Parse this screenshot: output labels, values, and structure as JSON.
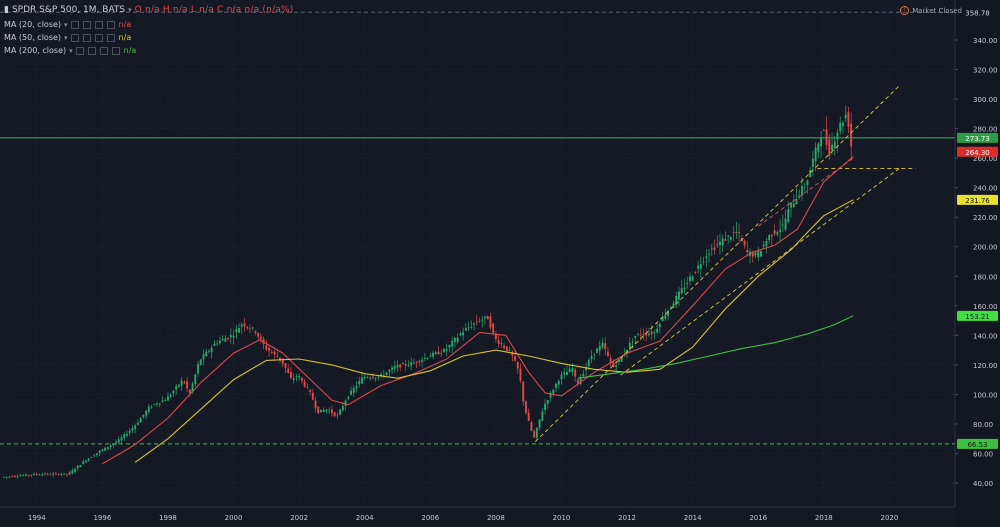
{
  "header": {
    "symbol_icon": "candles-icon",
    "title": "SPDR S&P 500, 1M, BATS",
    "ohlc": "O n/a  H n/a  L n/a  C n/a  n/a (n/a%)",
    "market_status": "Market Closed"
  },
  "indicators": [
    {
      "label": "MA (20, close)",
      "value": "n/a",
      "color": "#d84a4a"
    },
    {
      "label": "MA (50, close)",
      "value": "n/a",
      "color": "#d6c32b"
    },
    {
      "label": "MA (200, close)",
      "value": "n/a",
      "color": "#3fc03f"
    }
  ],
  "chart_data": {
    "type": "candlestick",
    "interval": "1M",
    "xlim": [
      1993.0,
      2022.0
    ],
    "ylim": [
      30,
      360
    ],
    "y_ticks": [
      40,
      60,
      80,
      100,
      120,
      140,
      160,
      180,
      200,
      220,
      240,
      260,
      280,
      300,
      320,
      340
    ],
    "y_tick_labels": [
      "40.00",
      "60.00",
      "80.00",
      "100.00",
      "120.00",
      "140.00",
      "160.00",
      "180.00",
      "200.00",
      "220.00",
      "240.00",
      "260.00",
      "280.00",
      "300.00",
      "320.00",
      "340.00"
    ],
    "x_ticks": [
      1994,
      1996,
      1998,
      2000,
      2002,
      2004,
      2006,
      2008,
      2010,
      2012,
      2014,
      2016,
      2018,
      2020
    ],
    "x_tick_labels": [
      "1994",
      "1996",
      "1998",
      "2000",
      "2002",
      "2004",
      "2006",
      "2008",
      "2010",
      "2012",
      "2014",
      "2016",
      "2018",
      "2020"
    ],
    "grid": true,
    "price_path": [
      [
        1993.0,
        44
      ],
      [
        1994.0,
        46
      ],
      [
        1995.0,
        46
      ],
      [
        1995.5,
        55
      ],
      [
        1996.0,
        62
      ],
      [
        1996.5,
        68
      ],
      [
        1997.0,
        78
      ],
      [
        1997.5,
        92
      ],
      [
        1998.0,
        97
      ],
      [
        1998.5,
        110
      ],
      [
        1998.7,
        100
      ],
      [
        1999.0,
        123
      ],
      [
        1999.5,
        135
      ],
      [
        2000.0,
        140
      ],
      [
        2000.3,
        148
      ],
      [
        2000.7,
        143
      ],
      [
        2001.0,
        132
      ],
      [
        2001.5,
        123
      ],
      [
        2001.8,
        110
      ],
      [
        2002.0,
        113
      ],
      [
        2002.4,
        100
      ],
      [
        2002.6,
        88
      ],
      [
        2002.9,
        90
      ],
      [
        2003.2,
        85
      ],
      [
        2003.5,
        98
      ],
      [
        2004.0,
        112
      ],
      [
        2004.5,
        112
      ],
      [
        2005.0,
        119
      ],
      [
        2005.5,
        121
      ],
      [
        2006.0,
        126
      ],
      [
        2006.5,
        130
      ],
      [
        2007.0,
        142
      ],
      [
        2007.5,
        150
      ],
      [
        2007.8,
        152
      ],
      [
        2008.0,
        138
      ],
      [
        2008.5,
        128
      ],
      [
        2008.75,
        115
      ],
      [
        2008.9,
        92
      ],
      [
        2009.1,
        77
      ],
      [
        2009.2,
        70
      ],
      [
        2009.5,
        92
      ],
      [
        2010.0,
        112
      ],
      [
        2010.4,
        118
      ],
      [
        2010.5,
        106
      ],
      [
        2011.0,
        128
      ],
      [
        2011.3,
        134
      ],
      [
        2011.6,
        118
      ],
      [
        2011.9,
        126
      ],
      [
        2012.3,
        140
      ],
      [
        2012.9,
        142
      ],
      [
        2013.0,
        148
      ],
      [
        2013.5,
        164
      ],
      [
        2014.0,
        180
      ],
      [
        2014.5,
        196
      ],
      [
        2015.0,
        205
      ],
      [
        2015.4,
        210
      ],
      [
        2015.7,
        196
      ],
      [
        2016.0,
        194
      ],
      [
        2016.4,
        208
      ],
      [
        2016.8,
        214
      ],
      [
        2017.0,
        227
      ],
      [
        2017.5,
        243
      ],
      [
        2018.0,
        280
      ],
      [
        2018.2,
        264
      ],
      [
        2018.5,
        281
      ],
      [
        2018.75,
        291
      ],
      [
        2018.9,
        264
      ]
    ],
    "series": [
      {
        "name": "MA (20, close)",
        "color": "#d84a4a",
        "points": [
          [
            1996.0,
            53
          ],
          [
            1997.0,
            66
          ],
          [
            1998.0,
            84
          ],
          [
            1999.0,
            108
          ],
          [
            2000.0,
            128
          ],
          [
            2000.8,
            137
          ],
          [
            2001.5,
            128
          ],
          [
            2002.3,
            111
          ],
          [
            2003.0,
            96
          ],
          [
            2003.5,
            93
          ],
          [
            2004.5,
            106
          ],
          [
            2005.5,
            114
          ],
          [
            2006.5,
            124
          ],
          [
            2007.5,
            142
          ],
          [
            2008.3,
            140
          ],
          [
            2009.0,
            115
          ],
          [
            2009.5,
            101
          ],
          [
            2010.0,
            99
          ],
          [
            2011.0,
            115
          ],
          [
            2012.0,
            128
          ],
          [
            2013.0,
            136
          ],
          [
            2014.0,
            160
          ],
          [
            2015.0,
            185
          ],
          [
            2015.8,
            196
          ],
          [
            2016.5,
            201
          ],
          [
            2017.2,
            212
          ],
          [
            2018.0,
            244
          ],
          [
            2018.9,
            261
          ]
        ]
      },
      {
        "name": "MA (50, close)",
        "color": "#d6c32b",
        "points": [
          [
            1997.0,
            54
          ],
          [
            1998.0,
            70
          ],
          [
            1999.0,
            90
          ],
          [
            2000.0,
            110
          ],
          [
            2001.0,
            123
          ],
          [
            2002.0,
            124
          ],
          [
            2003.0,
            120
          ],
          [
            2004.0,
            114
          ],
          [
            2005.0,
            111
          ],
          [
            2006.0,
            116
          ],
          [
            2007.0,
            126
          ],
          [
            2008.0,
            130
          ],
          [
            2009.0,
            126
          ],
          [
            2010.0,
            121
          ],
          [
            2011.0,
            117
          ],
          [
            2012.0,
            115
          ],
          [
            2013.0,
            117
          ],
          [
            2014.0,
            132
          ],
          [
            2015.0,
            158
          ],
          [
            2016.0,
            180
          ],
          [
            2017.0,
            198
          ],
          [
            2017.6,
            212
          ],
          [
            2018.0,
            221
          ],
          [
            2018.9,
            231.76
          ]
        ]
      },
      {
        "name": "MA (200, close)",
        "color": "#3fc03f",
        "points": [
          [
            2010.5,
            111
          ],
          [
            2011.5,
            114
          ],
          [
            2012.5,
            117
          ],
          [
            2013.5,
            121
          ],
          [
            2014.5,
            126
          ],
          [
            2015.5,
            131
          ],
          [
            2016.5,
            135
          ],
          [
            2017.5,
            141
          ],
          [
            2018.3,
            147
          ],
          [
            2018.9,
            153.21
          ]
        ]
      }
    ],
    "trendlines": [
      {
        "color": "#e0c93a",
        "dash": true,
        "points": [
          [
            2009.2,
            68
          ],
          [
            2020.3,
            309
          ]
        ]
      },
      {
        "color": "#e0c93a",
        "dash": true,
        "points": [
          [
            2011.8,
            113
          ],
          [
            2020.3,
            253
          ]
        ]
      },
      {
        "color": "#e0c93a",
        "dash": true,
        "points": [
          [
            2017.8,
            253
          ],
          [
            2020.8,
            253
          ]
        ]
      },
      {
        "color": "#e05050",
        "dash": true,
        "points": [
          [
            2016.0,
            214
          ],
          [
            2018.9,
            260
          ]
        ]
      }
    ],
    "horizontal_lines": [
      {
        "y": 358.78,
        "color": "#5b606e",
        "dash": true,
        "label": "358.78",
        "label_bg": "#131722",
        "label_fg": "#cfd2da"
      },
      {
        "y": 273.73,
        "color": "#3fb45a",
        "dash": false,
        "label": "273.73",
        "label_bg": "#2e9c45",
        "label_fg": "#ffffff"
      },
      {
        "y": 66.53,
        "color": "#3fbf3f",
        "dash": true,
        "label": "66.53",
        "label_bg": "#3fbf3f",
        "label_fg": "#0f1a0f"
      }
    ],
    "price_labels": [
      {
        "y": 264.3,
        "label": "264.30",
        "bg": "#e02a2a",
        "fg": "#ffffff"
      },
      {
        "y": 231.76,
        "label": "231.76",
        "bg": "#e8e22a",
        "fg": "#111111"
      },
      {
        "y": 153.21,
        "label": "153.21",
        "bg": "#3fe03f",
        "fg": "#0f1a0f"
      }
    ],
    "up_color": "#28a86b",
    "down_color": "#e04848"
  }
}
